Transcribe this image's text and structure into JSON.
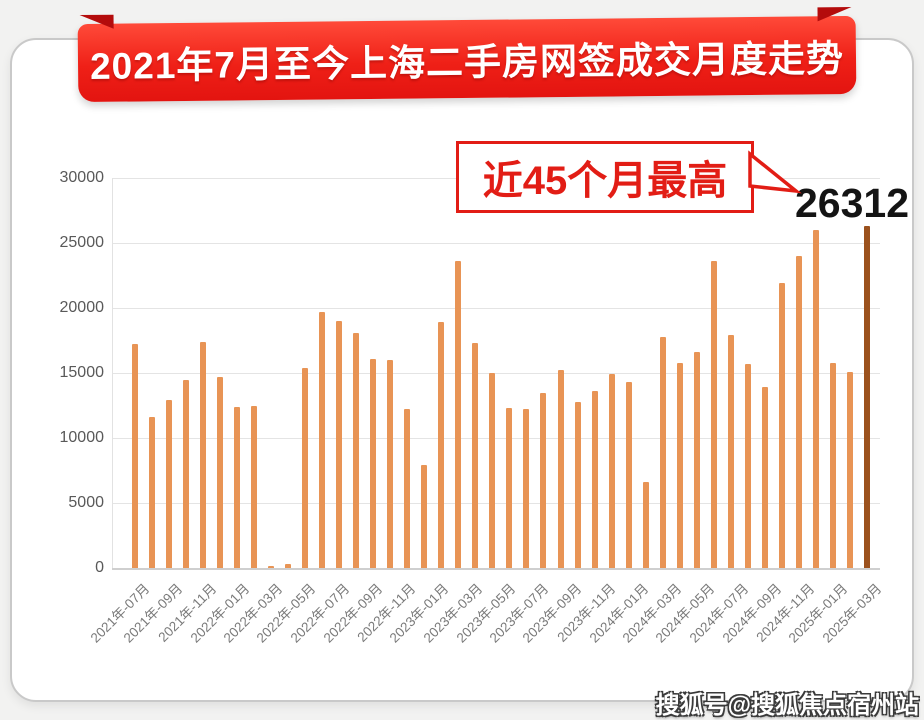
{
  "banner": {
    "title": "2021年7月至今上海二手房网签成交月度走势"
  },
  "annotation": {
    "label": "近45个月最高",
    "value": "26312"
  },
  "watermark": {
    "text": "搜狐号@搜狐焦点宿州站"
  },
  "colors": {
    "bar": "#E89455",
    "bar_highlight": "#9B511D",
    "banner_red": "#EF2017",
    "annotation_red": "#E21D15",
    "value_text": "#141414",
    "grid": "#E4E4E4"
  },
  "chart_data": {
    "type": "bar",
    "title": "2021年7月至今上海二手房网签成交月度走势",
    "xlabel": "",
    "ylabel": "",
    "ylim": [
      0,
      30000
    ],
    "grid": true,
    "legend": "none",
    "y_ticks": [
      0,
      5000,
      10000,
      15000,
      20000,
      25000,
      30000
    ],
    "categories": [
      "2021-07",
      "2021-08",
      "2021-09",
      "2021-10",
      "2021-11",
      "2021-12",
      "2022-01",
      "2022-02",
      "2022-03",
      "2022-05",
      "2022-06",
      "2022-07",
      "2022-08",
      "2022-09",
      "2022-10",
      "2022-11",
      "2022-12",
      "2023-01",
      "2023-02",
      "2023-03",
      "2023-04",
      "2023-05",
      "2023-06",
      "2023-07",
      "2023-08",
      "2023-09",
      "2023-10",
      "2023-11",
      "2023-12",
      "2024-01",
      "2024-02",
      "2024-03",
      "2024-04",
      "2024-05",
      "2024-06",
      "2024-07",
      "2024-08",
      "2024-09",
      "2024-10",
      "2024-11",
      "2024-12",
      "2025-01",
      "2025-02",
      "2025-03"
    ],
    "values": [
      17200,
      11600,
      12900,
      14500,
      17400,
      14700,
      12400,
      12500,
      150,
      300,
      15400,
      19700,
      19000,
      18100,
      16100,
      16000,
      12200,
      7900,
      18900,
      23600,
      17300,
      15000,
      12300,
      12200,
      13500,
      15200,
      12800,
      13600,
      14900,
      14300,
      6600,
      17800,
      15800,
      16600,
      23600,
      17900,
      15700,
      13900,
      21900,
      24000,
      26000,
      15800,
      15100,
      26312
    ],
    "highlight_last_bar": true,
    "annotated_max": 26312,
    "x_tick_labels": [
      "2021年-07月",
      "2021年-09月",
      "2021年-11月",
      "2022年-01月",
      "2022年-03月",
      "2022年-05月",
      "2022年-07月",
      "2022年-09月",
      "2022年-11月",
      "2023年-01月",
      "2023年-03月",
      "2023年-05月",
      "2023年-07月",
      "2023年-09月",
      "2023年-11月",
      "2024年-01月",
      "2024年-03月",
      "2024年-05月",
      "2024年-07月",
      "2024年-09月",
      "2024年-11月",
      "2025年-01月",
      "2025年-03月"
    ]
  }
}
